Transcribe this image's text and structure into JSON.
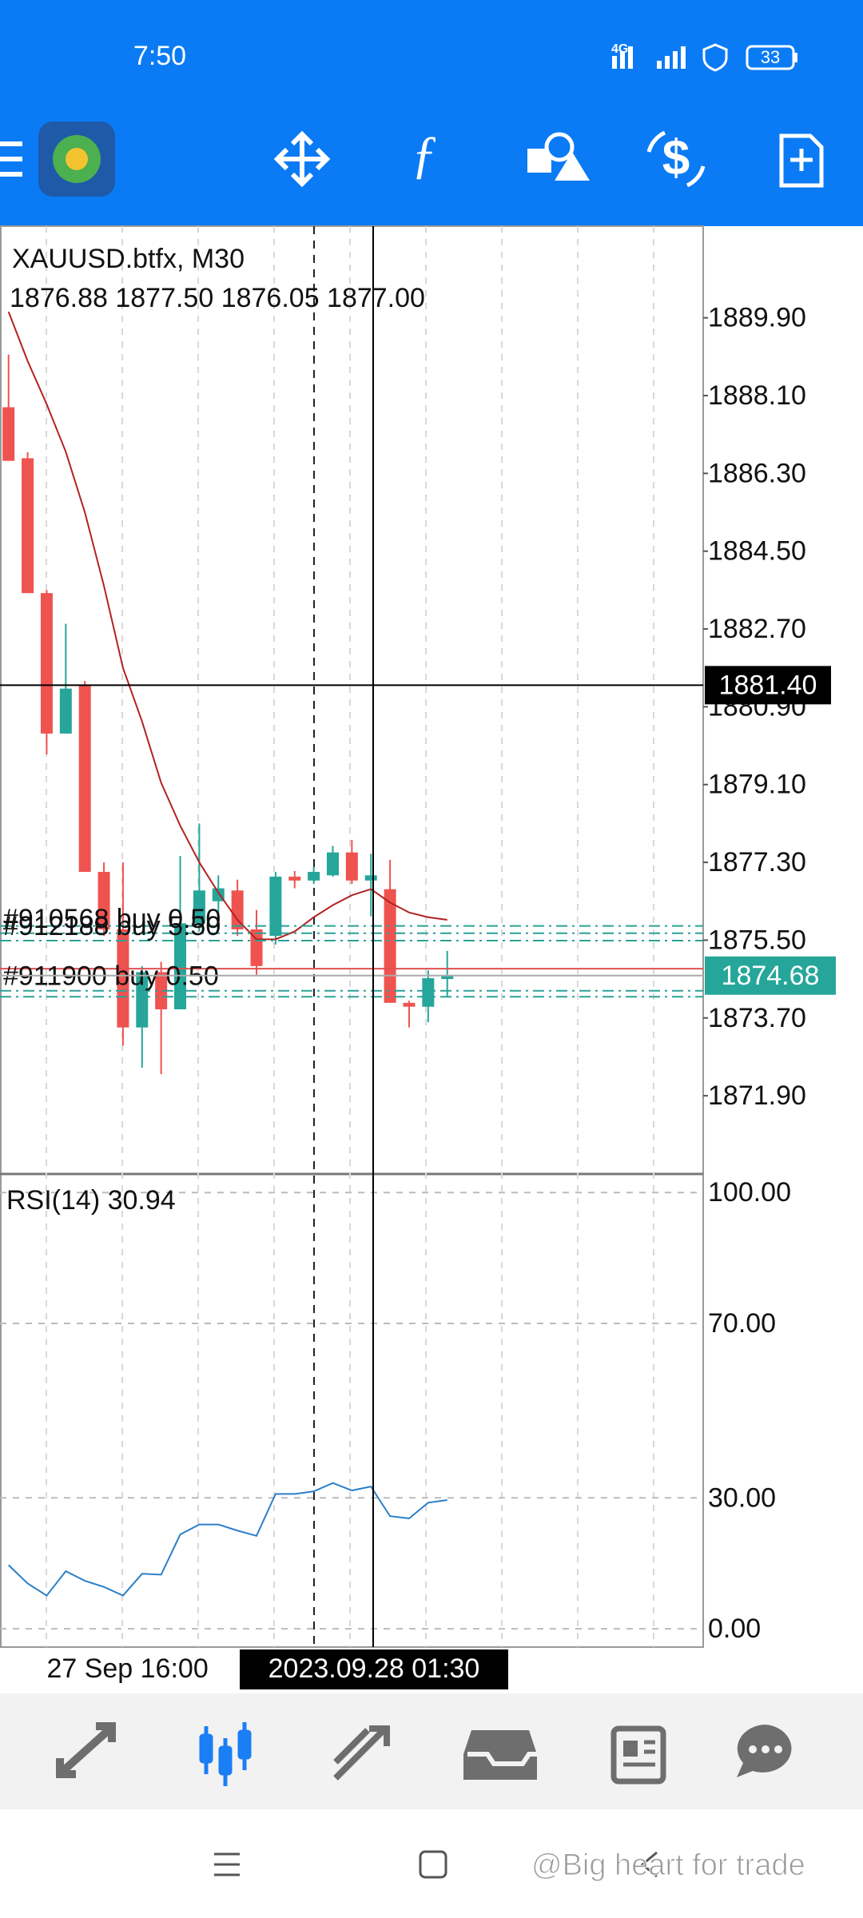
{
  "status_bar": {
    "time": "7:50",
    "network": "4G",
    "battery": "33"
  },
  "chart_data": {
    "type": "candlestick",
    "title": "XAUUSD.btfx, M30",
    "subtitle": "1876.88 1877.50 1876.05 1877.00",
    "categories": [
      null,
      null,
      "27 Sep 16:00",
      null,
      null,
      null,
      null,
      null,
      null,
      null,
      null,
      null,
      null,
      null,
      null,
      null,
      null,
      null,
      null,
      null,
      null,
      null,
      null,
      null
    ],
    "open": [
      1887.83,
      1886.65,
      1883.53,
      1880.28,
      1881.41,
      1877.08,
      1875.75,
      1873.48,
      1874.76,
      1873.9,
      1875.89,
      1876.4,
      1876.65,
      1875.75,
      1875.6,
      1876.97,
      1876.88,
      1877.0,
      1877.53,
      1876.88,
      1876.68,
      1874.05,
      1873.96,
      1874.6
    ],
    "high": [
      1889.05,
      1886.79,
      1883.6,
      1882.82,
      1881.5,
      1877.3,
      1877.3,
      1874.9,
      1875.0,
      1877.45,
      1878.2,
      1877.0,
      1876.9,
      1876.2,
      1877.08,
      1877.1,
      1877.2,
      1877.68,
      1877.82,
      1877.5,
      1877.36,
      1874.1,
      1874.8,
      1875.25
    ],
    "low": [
      1886.59,
      1883.53,
      1879.8,
      1880.28,
      1877.08,
      1875.6,
      1873.06,
      1872.55,
      1872.4,
      1873.9,
      1875.7,
      1875.9,
      1875.6,
      1874.7,
      1875.4,
      1876.7,
      1876.8,
      1876.97,
      1876.8,
      1876.05,
      1874.05,
      1873.48,
      1873.6,
      1874.2
    ],
    "close": [
      1886.59,
      1883.53,
      1880.28,
      1881.32,
      1877.08,
      1875.75,
      1873.48,
      1874.76,
      1873.9,
      1875.89,
      1876.65,
      1876.7,
      1875.75,
      1874.9,
      1876.97,
      1876.88,
      1877.08,
      1877.53,
      1876.88,
      1877.0,
      1874.05,
      1873.96,
      1874.62,
      1874.68
    ],
    "up_color": "#26a69a",
    "down_color": "#ef5350",
    "ma": {
      "color": "#b22222",
      "values": [
        1890.04,
        1888.9,
        1887.9,
        1886.8,
        1885.4,
        1883.7,
        1881.8,
        1880.56,
        1879.14,
        1878.15,
        1877.3,
        1876.6,
        1875.97,
        1875.52,
        1875.52,
        1875.7,
        1876.03,
        1876.31,
        1876.54,
        1876.68,
        1876.37,
        1876.14,
        1876.03,
        1875.97
      ]
    },
    "ylim": [
      1870.09,
      1892.02
    ],
    "yticks": [
      {
        "value": 1889.9,
        "label": "1889.90"
      },
      {
        "value": 1888.1,
        "label": "1888.10"
      },
      {
        "value": 1886.3,
        "label": "1886.30"
      },
      {
        "value": 1884.5,
        "label": "1884.50"
      },
      {
        "value": 1882.7,
        "label": "1882.70"
      },
      {
        "value": 1880.9,
        "label": "1880.90"
      },
      {
        "value": 1879.1,
        "label": "1879.10"
      },
      {
        "value": 1877.3,
        "label": "1877.30"
      },
      {
        "value": 1875.5,
        "label": "1875.50"
      },
      {
        "value": 1873.7,
        "label": "1873.70"
      },
      {
        "value": 1871.9,
        "label": "1871.90"
      }
    ],
    "orders": [
      {
        "label": "#910568 buy 0.50",
        "price": 1875.66
      },
      {
        "label": "#912188 buy 5.50",
        "price": 1875.49
      },
      {
        "label": "#911900 buy 0.50",
        "price": 1874.33
      }
    ],
    "levels": [
      1875.83,
      1874.19
    ],
    "bid_line": 1874.84,
    "current_price": {
      "value": 1874.68,
      "label": "1874.68"
    },
    "crosshair": {
      "price": {
        "value": 1881.4,
        "label": "1881.40"
      },
      "time": "2023.09.28 01:30"
    },
    "rsi": {
      "title": "RSI(14) 30.94",
      "color": "#2a7fc9",
      "ylim": [
        -4.2,
        103.7
      ],
      "yticks": [
        {
          "value": 100,
          "label": "100.00"
        },
        {
          "value": 70,
          "label": "70.00"
        },
        {
          "value": 30,
          "label": "30.00"
        },
        {
          "value": 0,
          "label": "0.00"
        }
      ],
      "values": [
        14.6,
        10.4,
        7.6,
        13.2,
        11,
        9.6,
        7.6,
        12.6,
        12.4,
        21.6,
        23.9,
        23.9,
        22.5,
        21.3,
        30.9,
        30.9,
        31.5,
        33.4,
        31.7,
        32.6,
        25.8,
        25.3,
        28.9,
        29.5
      ]
    }
  },
  "watermark": "@Big heart for trade"
}
